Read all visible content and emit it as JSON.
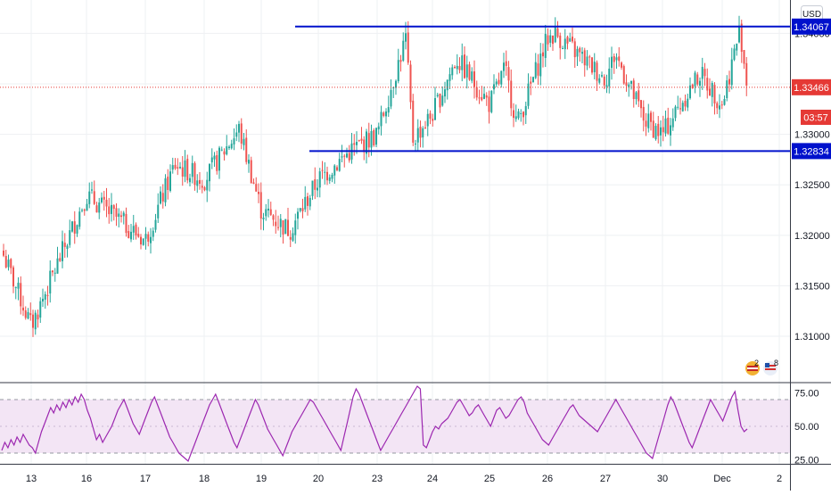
{
  "currency_label": "USD",
  "countdown": "03:57",
  "events": [
    {
      "icon": "uk-flag-icon",
      "count": "2"
    },
    {
      "icon": "us-flag-icon",
      "count": "8"
    }
  ],
  "colors": {
    "up": "#26a69a",
    "down": "#ef5350",
    "level_line": "#0011cc",
    "last_price": "#e53935",
    "rsi_line": "#9c27b0",
    "rsi_band": "#f3e5f5",
    "grid": "#eef0f3"
  },
  "chart_data": [
    {
      "type": "candlestick",
      "y_scale": "linear",
      "ylim": [
        1.3055,
        1.3433
      ],
      "y_ticks": [
        "1.31000",
        "1.31500",
        "1.32000",
        "1.32500",
        "1.33000",
        "1.34000"
      ],
      "x_ticks": [
        "13",
        "16",
        "17",
        "18",
        "19",
        "20",
        "23",
        "24",
        "25",
        "26",
        "27",
        "30",
        "Dec",
        "2"
      ],
      "horizontal_levels": [
        {
          "value": 1.34067,
          "label": "1.34067",
          "x_start": "20"
        },
        {
          "value": 1.32834,
          "label": "1.32834",
          "x_start": "19"
        }
      ],
      "last_price": {
        "value": 1.33466,
        "label": "1.33466"
      },
      "series_close_path": [
        {
          "x": "12",
          "y": 1.318
        },
        {
          "x": "13",
          "y": 1.311
        },
        {
          "x": "16",
          "y": 1.324
        },
        {
          "x": "17",
          "y": 1.3195
        },
        {
          "x": "17.5",
          "y": 1.327
        },
        {
          "x": "18",
          "y": 1.3255
        },
        {
          "x": "18.5",
          "y": 1.3305
        },
        {
          "x": "19",
          "y": 1.3225
        },
        {
          "x": "19.5",
          "y": 1.3205
        },
        {
          "x": "20",
          "y": 1.3255
        },
        {
          "x": "20.5",
          "y": 1.3285
        },
        {
          "x": "23",
          "y": 1.33
        },
        {
          "x": "23.5",
          "y": 1.3395
        },
        {
          "x": "23.6",
          "y": 1.3295
        },
        {
          "x": "24",
          "y": 1.332
        },
        {
          "x": "24.5",
          "y": 1.3375
        },
        {
          "x": "25",
          "y": 1.333
        },
        {
          "x": "25.5",
          "y": 1.3365
        },
        {
          "x": "25.7",
          "y": 1.331
        },
        {
          "x": "26",
          "y": 1.3395
        },
        {
          "x": "26.5",
          "y": 1.34
        },
        {
          "x": "27",
          "y": 1.3355
        },
        {
          "x": "27.5",
          "y": 1.338
        },
        {
          "x": "28",
          "y": 1.3315
        },
        {
          "x": "30",
          "y": 1.33
        },
        {
          "x": "30.5",
          "y": 1.334
        },
        {
          "x": "30.8",
          "y": 1.336
        },
        {
          "x": "Dec",
          "y": 1.333
        },
        {
          "x": "Dec.5",
          "y": 1.3405
        },
        {
          "x": "Dec.7",
          "y": 1.3347
        }
      ]
    },
    {
      "type": "line",
      "name": "",
      "ylim": [
        22,
        82
      ],
      "y_ticks": [
        "75.00",
        "50.00",
        "25.00"
      ],
      "band": [
        30,
        70
      ],
      "values": [
        32,
        38,
        34,
        40,
        36,
        42,
        38,
        44,
        40,
        36,
        34,
        30,
        38,
        46,
        52,
        58,
        64,
        60,
        66,
        62,
        68,
        64,
        70,
        66,
        72,
        68,
        74,
        70,
        62,
        56,
        48,
        40,
        44,
        38,
        42,
        46,
        50,
        56,
        62,
        66,
        70,
        64,
        58,
        52,
        48,
        44,
        50,
        56,
        62,
        68,
        72,
        66,
        60,
        54,
        48,
        42,
        38,
        34,
        30,
        28,
        26,
        24,
        30,
        36,
        42,
        48,
        54,
        60,
        66,
        70,
        74,
        68,
        62,
        56,
        50,
        44,
        38,
        34,
        40,
        46,
        52,
        58,
        64,
        70,
        66,
        60,
        54,
        48,
        44,
        40,
        36,
        32,
        28,
        34,
        40,
        46,
        50,
        54,
        58,
        62,
        66,
        70,
        68,
        64,
        60,
        56,
        52,
        48,
        44,
        40,
        36,
        32,
        42,
        52,
        62,
        72,
        78,
        74,
        68,
        62,
        56,
        50,
        44,
        38,
        32,
        36,
        40,
        44,
        48,
        52,
        56,
        60,
        64,
        68,
        72,
        76,
        80,
        78,
        36,
        34,
        40,
        46,
        50,
        48,
        52,
        54,
        56,
        60,
        64,
        68,
        70,
        66,
        62,
        58,
        60,
        64,
        66,
        62,
        58,
        54,
        50,
        56,
        62,
        64,
        60,
        56,
        58,
        62,
        66,
        70,
        72,
        68,
        60,
        56,
        52,
        48,
        44,
        40,
        38,
        36,
        40,
        44,
        48,
        52,
        56,
        60,
        64,
        66,
        62,
        58,
        56,
        54,
        52,
        50,
        48,
        46,
        50,
        54,
        58,
        62,
        66,
        70,
        66,
        62,
        58,
        54,
        50,
        46,
        42,
        38,
        34,
        30,
        28,
        26,
        34,
        42,
        50,
        58,
        66,
        72,
        68,
        62,
        56,
        50,
        44,
        38,
        34,
        40,
        46,
        52,
        58,
        64,
        70,
        66,
        62,
        58,
        54,
        60,
        66,
        72,
        76,
        62,
        50,
        46,
        48
      ]
    }
  ]
}
